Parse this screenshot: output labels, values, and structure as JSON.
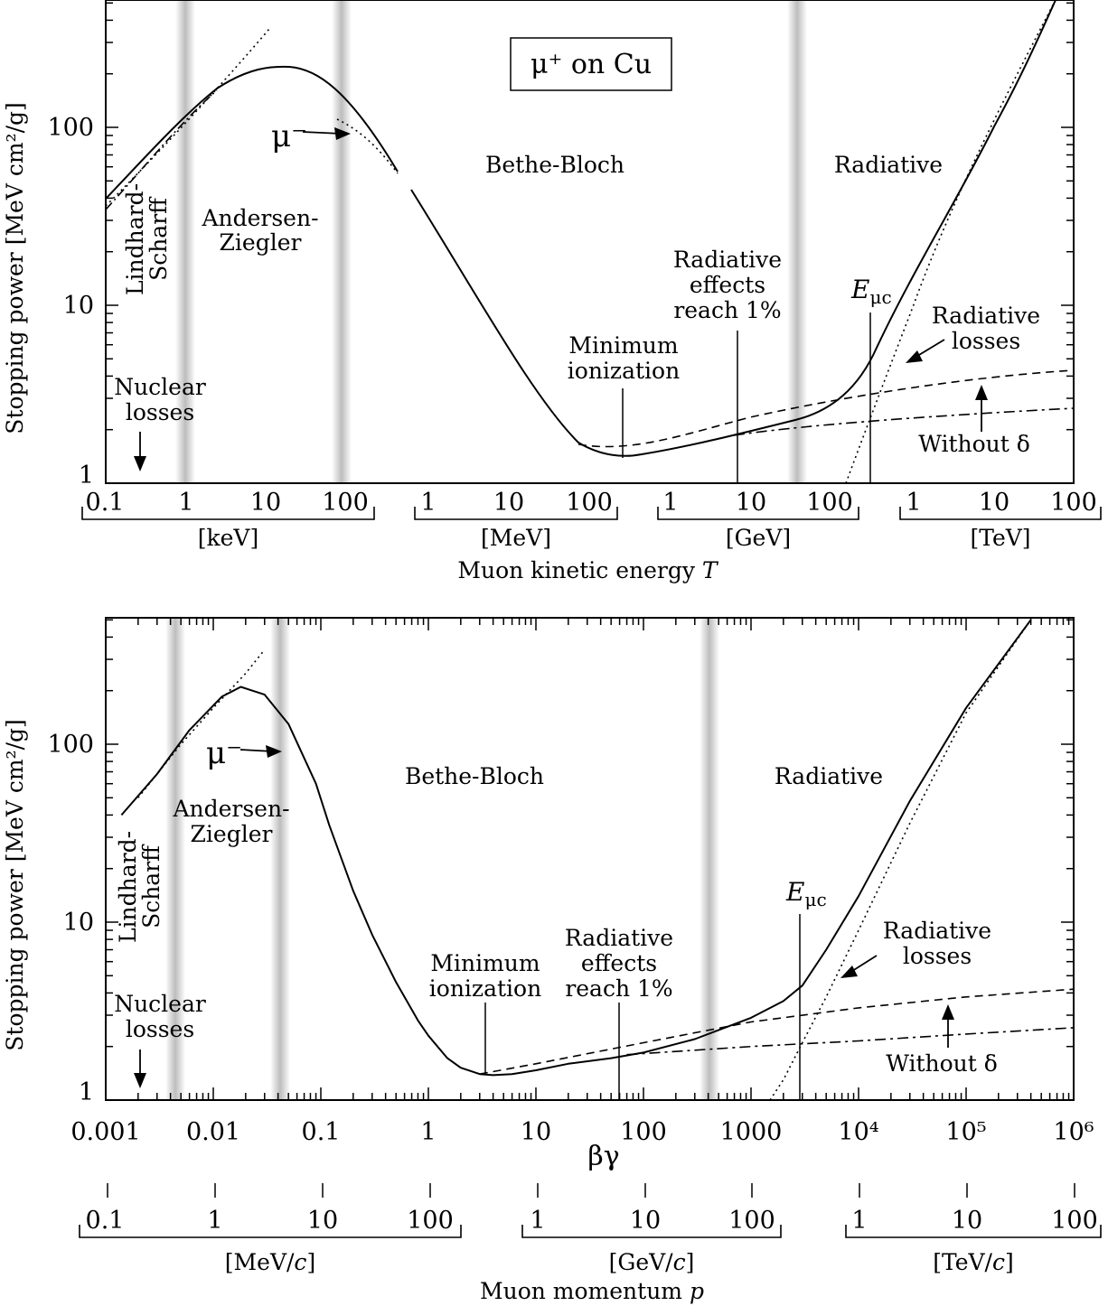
{
  "chart_data": [
    {
      "type": "line",
      "title": "μ⁺ on Cu",
      "ylabel": "Stopping power [MeV cm²/g]",
      "xlabel": "Muon kinetic energy T",
      "yscale": "log",
      "ylim": [
        1,
        500
      ],
      "yticks": [
        "1",
        "10",
        "100"
      ],
      "unit_groups": [
        {
          "unit": "[keV]",
          "ticks": [
            "0.1",
            "1",
            "10",
            "100"
          ]
        },
        {
          "unit": "[MeV]",
          "ticks": [
            "1",
            "10",
            "100"
          ]
        },
        {
          "unit": "[GeV]",
          "ticks": [
            "1",
            "10",
            "100"
          ]
        },
        {
          "unit": "[TeV]",
          "ticks": [
            "1",
            "10",
            "100"
          ]
        }
      ],
      "regions": [
        "Lindhard-Scharff",
        "Andersen-Ziegler",
        "Bethe-Bloch",
        "Radiative"
      ],
      "annotations": {
        "nuclear": "Nuclear losses",
        "mu_minus": "μ⁻",
        "min_ion": "Minimum ionization",
        "rad1": "Radiative effects reach 1%",
        "emuc": "Eμc",
        "radloss": "Radiative losses",
        "without": "Without δ"
      },
      "grid": false
    },
    {
      "type": "line",
      "ylabel": "Stopping power [MeV cm²/g]",
      "xlabel": "βγ",
      "xlabel2": "Muon momentum p",
      "xscale": "log",
      "xlim": [
        0.001,
        1000000
      ],
      "yscale": "log",
      "ylim": [
        1,
        500
      ],
      "yticks": [
        "1",
        "10",
        "100"
      ],
      "xticks": [
        "0.001",
        "0.01",
        "0.1",
        "1",
        "10",
        "100",
        "1000",
        "10⁴",
        "10⁵",
        "10⁶"
      ],
      "series": [
        {
          "style": "solid",
          "x": [
            0.0014,
            0.003,
            0.006,
            0.012,
            0.018,
            0.03,
            0.05,
            0.09,
            0.12,
            0.2,
            0.3,
            0.5,
            0.8,
            1.0,
            1.5,
            2.0,
            3.0,
            4.0,
            6.0,
            10,
            20,
            50,
            100,
            300,
            1000,
            2000,
            3000,
            5000,
            10000,
            30000,
            100000,
            400000
          ],
          "y": [
            40,
            68,
            120,
            185,
            210,
            190,
            130,
            60,
            35,
            15,
            8.5,
            4.6,
            2.8,
            2.3,
            1.72,
            1.52,
            1.4,
            1.38,
            1.4,
            1.47,
            1.6,
            1.72,
            1.85,
            2.2,
            2.9,
            3.6,
            4.4,
            7.0,
            14,
            48,
            160,
            500
          ]
        },
        {
          "style": "dotted",
          "x": [
            0.002,
            0.005,
            0.01,
            0.02,
            0.03
          ],
          "y": [
            50,
            100,
            160,
            250,
            340
          ]
        },
        {
          "style": "dotted",
          "x": [
            1500,
            2000,
            3000,
            5000,
            10000,
            30000,
            100000,
            400000
          ],
          "y": [
            1.0,
            1.3,
            2.1,
            3.8,
            9,
            36,
            150,
            500
          ]
        },
        {
          "style": "dashed",
          "x": [
            3,
            10,
            100,
            1000,
            10000,
            100000,
            1000000
          ],
          "y": [
            1.4,
            1.6,
            2.1,
            2.75,
            3.3,
            3.8,
            4.2
          ]
        },
        {
          "style": "dash-dot",
          "x": [
            70,
            1000,
            10000,
            100000,
            1000000
          ],
          "y": [
            1.8,
            2.0,
            2.15,
            2.35,
            2.55
          ]
        }
      ],
      "momentum_groups": [
        {
          "unit": "[MeV/c]",
          "ticks": [
            "0.1",
            "1",
            "10",
            "100"
          ]
        },
        {
          "unit": "[GeV/c]",
          "ticks": [
            "1",
            "10",
            "100"
          ]
        },
        {
          "unit": "[TeV/c]",
          "ticks": [
            "1",
            "10",
            "100"
          ]
        }
      ],
      "regions": [
        "Lindhard-Scharff",
        "Andersen-Ziegler",
        "Bethe-Bloch",
        "Radiative"
      ],
      "annotations": {
        "nuclear": "Nuclear losses",
        "mu_minus": "μ⁻",
        "min_ion": "Minimum ionization",
        "rad1": "Radiative effects reach 1%",
        "emuc": "Eμc",
        "radloss": "Radiative losses",
        "without": "Without δ"
      },
      "grid": false
    }
  ]
}
